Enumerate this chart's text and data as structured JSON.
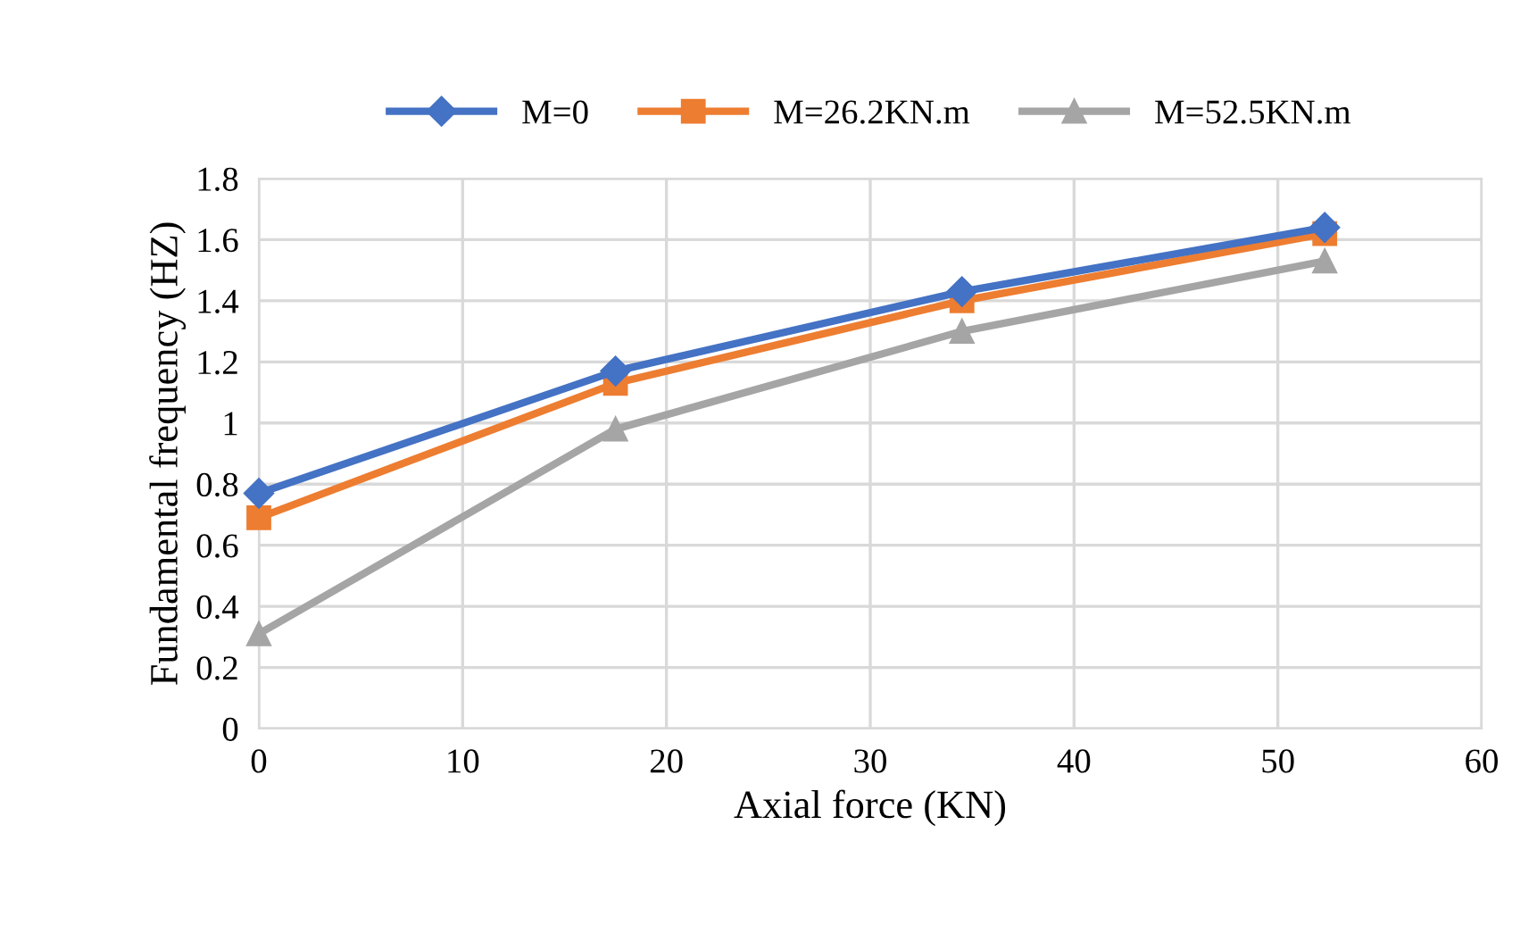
{
  "chart_data": {
    "type": "line",
    "xlabel": "Axial force (KN)",
    "ylabel": "Fundamental frequency (HZ)",
    "x": [
      0,
      17.5,
      34.5,
      52.3
    ],
    "series": [
      {
        "name": "M=0",
        "color": "#4472c4",
        "marker": "diamond",
        "values": [
          0.77,
          1.17,
          1.43,
          1.64
        ]
      },
      {
        "name": "M=26.2KN.m",
        "color": "#ed7d31",
        "marker": "square",
        "values": [
          0.69,
          1.13,
          1.4,
          1.62
        ]
      },
      {
        "name": "M=52.5KN.m",
        "color": "#a5a5a5",
        "marker": "triangle",
        "values": [
          0.31,
          0.98,
          1.3,
          1.53
        ]
      }
    ],
    "xlim": [
      0,
      60
    ],
    "xticks": [
      0,
      10,
      20,
      30,
      40,
      50,
      60
    ],
    "ylim": [
      0,
      1.8
    ],
    "yticks": [
      0,
      0.2,
      0.4,
      0.6,
      0.8,
      1,
      1.2,
      1.4,
      1.6,
      1.8
    ],
    "grid": true,
    "legend": "top",
    "line_style": "solid"
  }
}
